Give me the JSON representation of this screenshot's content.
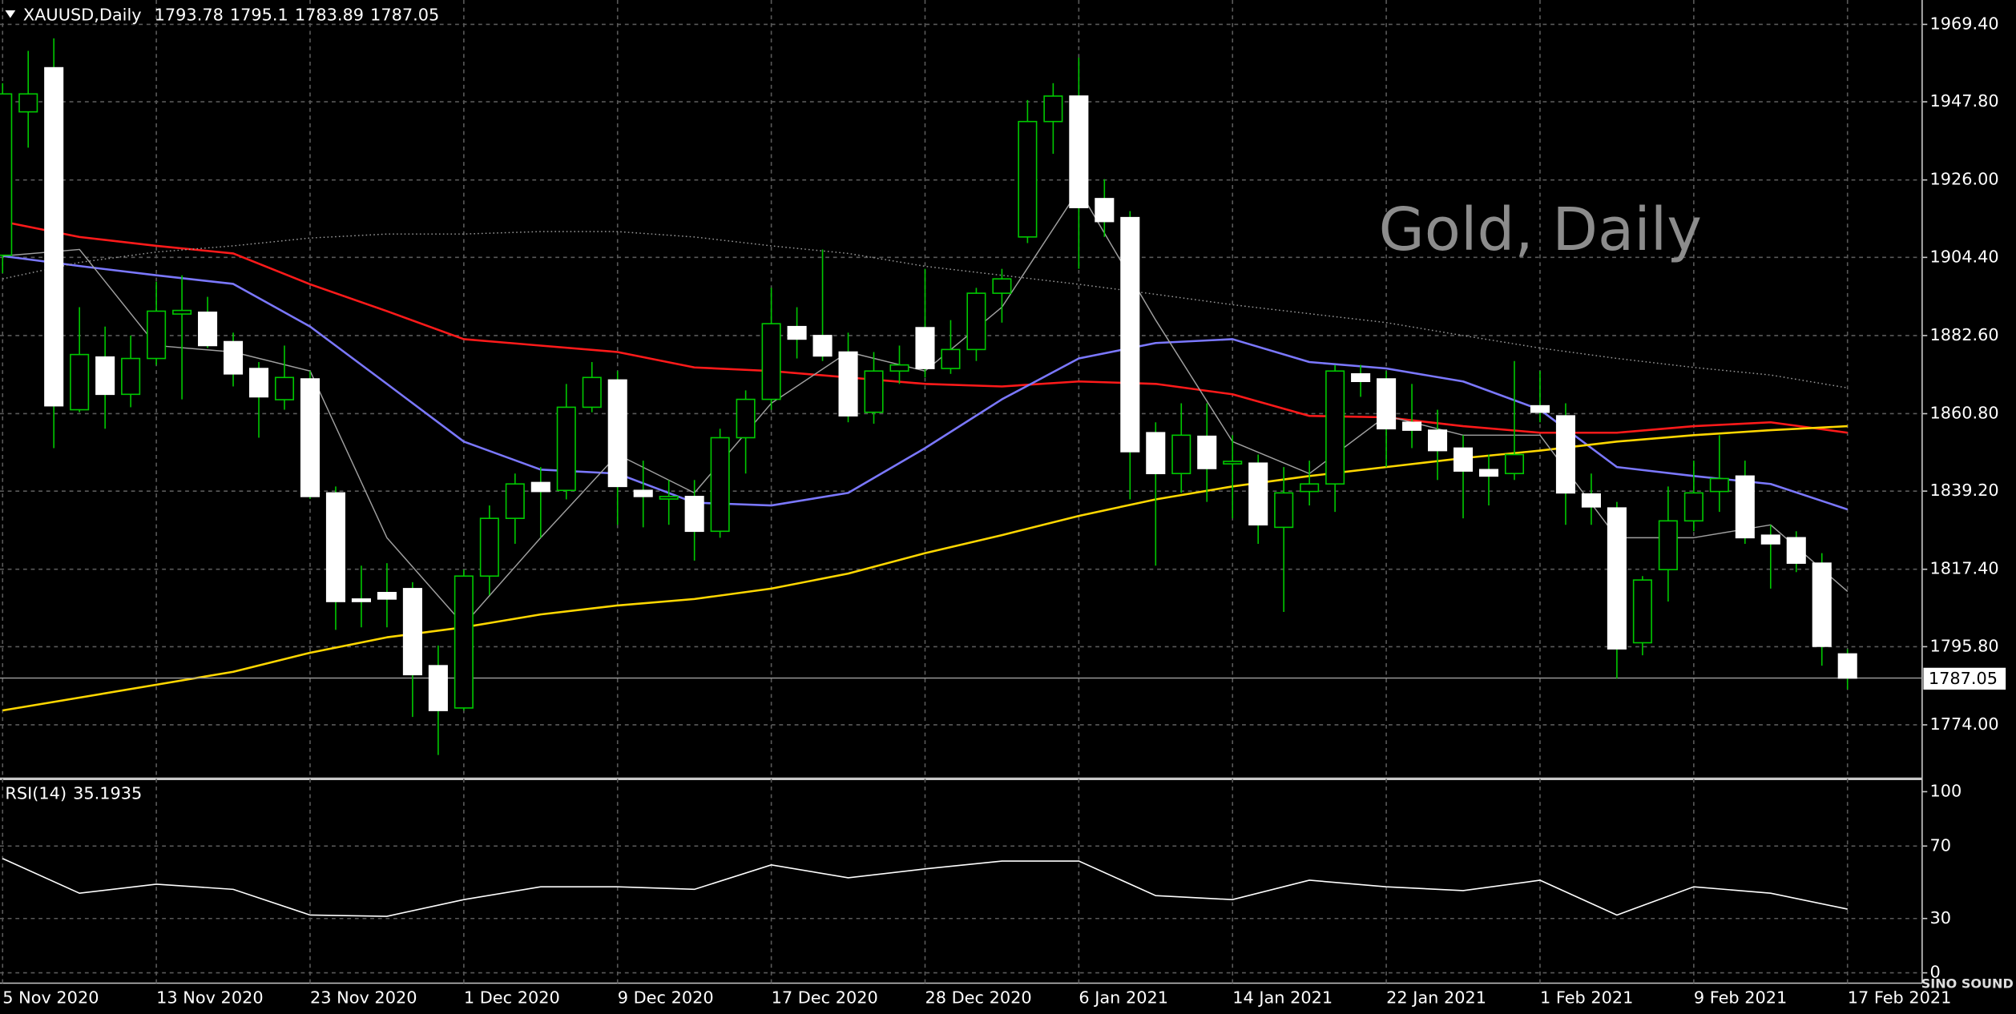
{
  "chart_data": [
    {
      "type": "candlestick",
      "title": "XAUUSD,Daily",
      "annotation": "Gold, Daily",
      "watermark": "SINO SOUND",
      "categories": [
        "5 Nov 2020",
        null,
        null,
        null,
        null,
        null,
        "13 Nov 2020",
        null,
        null,
        null,
        null,
        null,
        "23 Nov 2020",
        null,
        null,
        null,
        null,
        null,
        "1 Dec 2020",
        null,
        null,
        null,
        null,
        null,
        "9 Dec 2020",
        null,
        null,
        null,
        null,
        null,
        "17 Dec 2020",
        null,
        null,
        null,
        null,
        null,
        "28 Dec 2020",
        null,
        null,
        null,
        null,
        null,
        "6 Jan 2021",
        null,
        null,
        null,
        null,
        null,
        "14 Jan 2021",
        null,
        null,
        null,
        null,
        null,
        "22 Jan 2021",
        null,
        null,
        null,
        null,
        null,
        "1 Feb 2021",
        null,
        null,
        null,
        null,
        null,
        "9 Feb 2021",
        null,
        null,
        null,
        null,
        null,
        "17 Feb 2021"
      ],
      "open": [
        1905,
        1945,
        1957.3,
        1861.9,
        1876.6,
        1866.2,
        1876.2,
        1888.6,
        1889.1,
        1880.9,
        1873.4,
        1864.7,
        1870.5,
        1838.7,
        1809.1,
        1810.9,
        1812.0,
        1790.5,
        1778.7,
        1815.5,
        1831.6,
        1841.6,
        1839.4,
        1862.6,
        1870.2,
        1839.4,
        1837.0,
        1837.7,
        1828.0,
        1854.1,
        1864.8,
        1885.1,
        1882.6,
        1878.0,
        1861.2,
        1872.7,
        1884.8,
        1873.4,
        1878.7,
        1894.4,
        1910.1,
        1942.3,
        1949.4,
        1920.8,
        1915.5,
        1855.5,
        1844.1,
        1854.5,
        1846.8,
        1847.0,
        1829.1,
        1839.1,
        1841.2,
        1871.9,
        1870.5,
        1858.4,
        1856.2,
        1851.2,
        1845.2,
        1844.1,
        1863.0,
        1860.2,
        1838.4,
        1834.5,
        1796.9,
        1817.3,
        1830.9,
        1839.1,
        1843.4,
        1826.9,
        1826.2,
        1819.1,
        1793.78
      ],
      "high": [
        1953,
        1962,
        1965.5,
        1890.5,
        1885.1,
        1882.6,
        1897.6,
        1899.4,
        1893.4,
        1883.4,
        1875.2,
        1879.8,
        1872.7,
        1840.5,
        1818.4,
        1819.1,
        1813.8,
        1796.1,
        1817.3,
        1835.2,
        1844.1,
        1845.9,
        1869.1,
        1875.2,
        1872.7,
        1847.7,
        1842.3,
        1842.3,
        1856.6,
        1867.3,
        1895.9,
        1890.5,
        1906.6,
        1883.4,
        1878.0,
        1879.8,
        1901.2,
        1886.9,
        1895.9,
        1901.2,
        1948.3,
        1953.0,
        1960.1,
        1926.2,
        1917.3,
        1858.4,
        1863.7,
        1863.7,
        1854.8,
        1849.4,
        1845.9,
        1847.7,
        1874.4,
        1874.4,
        1872.7,
        1869.1,
        1861.9,
        1854.8,
        1849.4,
        1875.5,
        1872.7,
        1863.7,
        1844.1,
        1836.2,
        1815.5,
        1840.5,
        1847.7,
        1854.8,
        1847.7,
        1829.8,
        1828.0,
        1821.9,
        1795.1
      ],
      "low": [
        1900,
        1935,
        1851.2,
        1861.2,
        1856.6,
        1862.6,
        1874.4,
        1864.8,
        1879.1,
        1868.4,
        1854.1,
        1861.9,
        1837.0,
        1800.5,
        1801.2,
        1801.2,
        1776.2,
        1765.6,
        1778.0,
        1810.2,
        1824.5,
        1826.2,
        1836.9,
        1861.2,
        1829.8,
        1829.1,
        1829.8,
        1819.8,
        1826.2,
        1844.1,
        1861.9,
        1876.2,
        1875.5,
        1858.4,
        1858.0,
        1869.1,
        1870.9,
        1871.9,
        1875.5,
        1886.2,
        1908.4,
        1933.3,
        1901.2,
        1910.1,
        1836.9,
        1818.4,
        1838.7,
        1836.2,
        1831.6,
        1824.5,
        1805.5,
        1835.2,
        1833.4,
        1865.5,
        1845.9,
        1851.2,
        1842.3,
        1831.6,
        1835.2,
        1842.3,
        1858.4,
        1829.8,
        1829.8,
        1786.9,
        1793.4,
        1808.4,
        1828.0,
        1833.4,
        1824.5,
        1812.0,
        1816.6,
        1790.5,
        1783.89
      ],
      "close": [
        1950,
        1950,
        1863.0,
        1877.3,
        1866.2,
        1876.2,
        1889.4,
        1889.6,
        1879.8,
        1871.9,
        1865.5,
        1870.9,
        1837.7,
        1808.4,
        1808.4,
        1809.1,
        1788.0,
        1778.0,
        1815.5,
        1831.6,
        1841.2,
        1839.1,
        1862.6,
        1870.9,
        1840.5,
        1837.7,
        1837.7,
        1828.0,
        1854.1,
        1864.8,
        1885.9,
        1881.6,
        1876.9,
        1860.2,
        1872.7,
        1874.4,
        1873.4,
        1878.7,
        1894.4,
        1898.4,
        1942.3,
        1949.4,
        1918.3,
        1914.4,
        1850.2,
        1844.1,
        1854.8,
        1845.5,
        1847.5,
        1829.8,
        1838.7,
        1841.2,
        1872.7,
        1869.8,
        1856.6,
        1856.2,
        1850.5,
        1844.8,
        1843.4,
        1849.4,
        1861.2,
        1838.7,
        1834.8,
        1795.2,
        1814.4,
        1830.9,
        1838.7,
        1842.7,
        1826.2,
        1824.5,
        1819.1,
        1795.9,
        1787.05
      ],
      "up_color": "#00c800",
      "down_color": "#ffffff",
      "wick_color": "#00c800",
      "ylim": [
        1759.3,
        1976.2
      ],
      "yticks": [
        {
          "value": 1969.4,
          "label": "1969.40"
        },
        {
          "value": 1947.8,
          "label": "1947.80"
        },
        {
          "value": 1926,
          "label": "1926.00"
        },
        {
          "value": 1904.4,
          "label": "1904.40"
        },
        {
          "value": 1882.6,
          "label": "1882.60"
        },
        {
          "value": 1860.8,
          "label": "1860.80"
        },
        {
          "value": 1839.2,
          "label": "1839.20"
        },
        {
          "value": 1817.4,
          "label": "1817.40"
        },
        {
          "value": 1795.8,
          "label": "1795.80"
        },
        {
          "value": 1774,
          "label": "1774.00"
        }
      ],
      "grid": true,
      "lines": [
        {
          "color": "#ff1a1a",
          "style": "thick",
          "x": [
            0,
            3,
            6,
            9,
            12,
            15,
            18,
            21,
            24,
            27,
            30,
            33,
            36,
            39,
            42,
            45,
            48,
            51,
            54,
            57,
            60,
            63,
            66,
            69,
            72
          ],
          "values": [
            1914.4,
            1910.1,
            1907.6,
            1905.5,
            1896.9,
            1889.4,
            1881.6,
            1879.8,
            1878.0,
            1873.7,
            1872.7,
            1870.9,
            1869.1,
            1868.4,
            1869.8,
            1869.1,
            1866.2,
            1860.2,
            1859.8,
            1857.3,
            1855.5,
            1855.5,
            1857.3,
            1858.4,
            1855.5
          ]
        },
        {
          "color": "#7b78ff",
          "style": "thick",
          "x": [
            0,
            3,
            6,
            9,
            12,
            15,
            18,
            21,
            24,
            27,
            30,
            33,
            36,
            39,
            42,
            45,
            48,
            51,
            54,
            57,
            60,
            63,
            66,
            69,
            72
          ],
          "values": [
            1904.8,
            1902.0,
            1899.4,
            1897.0,
            1885.1,
            1869.1,
            1853.0,
            1845.2,
            1844.1,
            1836.0,
            1835.2,
            1838.7,
            1851.2,
            1864.8,
            1876.2,
            1880.5,
            1881.6,
            1875.2,
            1873.4,
            1869.8,
            1861.9,
            1845.9,
            1843.4,
            1841.2,
            1834.1
          ]
        },
        {
          "color": "#ffd700",
          "style": "thick",
          "x": [
            0,
            3,
            6,
            9,
            12,
            15,
            18,
            21,
            24,
            27,
            30,
            33,
            36,
            39,
            42,
            45,
            48,
            51,
            54,
            57,
            60,
            63,
            66,
            69,
            72
          ],
          "values": [
            1778.0,
            1781.6,
            1785.2,
            1788.8,
            1794.1,
            1798.4,
            1801.2,
            1804.8,
            1807.3,
            1809.1,
            1812.0,
            1816.2,
            1821.9,
            1826.9,
            1832.3,
            1836.9,
            1840.5,
            1843.4,
            1845.9,
            1848.4,
            1850.5,
            1853.0,
            1854.8,
            1856.2,
            1857.3
          ]
        },
        {
          "color": "#9a9a9a",
          "style": "dotted",
          "x": [
            0,
            3,
            6,
            9,
            12,
            15,
            18,
            21,
            24,
            27,
            30,
            33,
            36,
            39,
            42,
            45,
            48,
            51,
            54,
            57,
            60,
            63,
            66,
            69,
            72
          ],
          "values": [
            1898.4,
            1903.0,
            1905.9,
            1907.6,
            1909.8,
            1910.9,
            1910.9,
            1911.6,
            1911.6,
            1910.1,
            1907.6,
            1905.5,
            1901.9,
            1899.4,
            1896.9,
            1894.1,
            1891.2,
            1888.7,
            1886.2,
            1882.6,
            1879.1,
            1876.2,
            1873.7,
            1871.6,
            1868.0
          ]
        },
        {
          "color": "#a0a0a0",
          "style": "thin",
          "x": [
            0,
            3,
            6,
            9,
            12,
            15,
            18,
            21,
            24,
            27,
            30,
            33,
            36,
            39,
            42,
            45,
            48,
            51,
            54,
            57,
            60,
            63,
            66,
            69,
            72
          ],
          "values": [
            1904.8,
            1906.6,
            1879.8,
            1878.0,
            1872.7,
            1826.2,
            1801.9,
            1826.2,
            1849.4,
            1838.7,
            1863.7,
            1878.0,
            1872.7,
            1890.5,
            1923.3,
            1886.9,
            1853.0,
            1844.1,
            1860.2,
            1854.8,
            1854.8,
            1826.2,
            1826.2,
            1829.8,
            1811.2
          ]
        }
      ]
    },
    {
      "type": "line",
      "title": "RSI(14)",
      "current_value": 35.1935,
      "color": "#ffffff",
      "x": [
        0,
        3,
        6,
        9,
        12,
        15,
        18,
        21,
        24,
        27,
        30,
        33,
        36,
        39,
        42,
        45,
        48,
        51,
        54,
        57,
        60,
        63,
        66,
        69,
        72
      ],
      "values": [
        63.1,
        44.0,
        48.9,
        46.1,
        31.9,
        31.2,
        40.4,
        47.5,
        47.5,
        46.1,
        59.6,
        52.5,
        57.4,
        61.7,
        61.7,
        42.6,
        40.4,
        51.1,
        47.5,
        45.4,
        51.1,
        31.9,
        47.5,
        44.0,
        35.2
      ],
      "ylim": [
        -5.7,
        106.4
      ],
      "yticks": [
        100,
        70,
        30,
        0
      ]
    }
  ]
}
